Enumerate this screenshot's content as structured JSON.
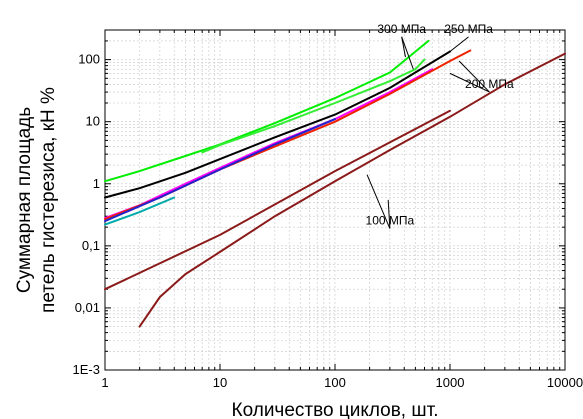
{
  "chart_data": {
    "type": "line",
    "xscale": "log",
    "yscale": "log",
    "xlim": [
      1,
      10000
    ],
    "ylim": [
      0.001,
      300
    ],
    "grid": true,
    "xlabel": "Количество циклов, шт.",
    "ylabel": [
      "Суммарная площадь",
      "петель гистерезиса, кН %"
    ],
    "x_ticks": [
      {
        "value": 1,
        "label": "1"
      },
      {
        "value": 10,
        "label": "10"
      },
      {
        "value": 100,
        "label": "100"
      },
      {
        "value": 1000,
        "label": "1000"
      },
      {
        "value": 10000,
        "label": "10000"
      }
    ],
    "y_ticks": [
      {
        "value": 0.001,
        "label": "1E-3"
      },
      {
        "value": 0.01,
        "label": "0,01"
      },
      {
        "value": 0.1,
        "label": "0,1"
      },
      {
        "value": 1,
        "label": "1"
      },
      {
        "value": 10,
        "label": "10"
      },
      {
        "value": 100,
        "label": "100"
      }
    ],
    "series": [
      {
        "color": "#00ee00",
        "points": [
          [
            1,
            1.1
          ],
          [
            2,
            1.6
          ],
          [
            5,
            2.8
          ],
          [
            10,
            4.3
          ],
          [
            30,
            9.5
          ],
          [
            100,
            24
          ],
          [
            300,
            62
          ],
          [
            650,
            200
          ]
        ]
      },
      {
        "color": "#33ee33",
        "points": [
          [
            7,
            3.2
          ],
          [
            10,
            4.2
          ],
          [
            30,
            8.5
          ],
          [
            100,
            20
          ],
          [
            300,
            45
          ],
          [
            500,
            70
          ],
          [
            600,
            100
          ]
        ]
      },
      {
        "color": "#000000",
        "points": [
          [
            1,
            0.6
          ],
          [
            2,
            0.85
          ],
          [
            5,
            1.5
          ],
          [
            10,
            2.5
          ],
          [
            30,
            5.6
          ],
          [
            100,
            13
          ],
          [
            300,
            35
          ],
          [
            1000,
            135
          ]
        ]
      },
      {
        "color": "#ff00ff",
        "points": [
          [
            1,
            0.28
          ],
          [
            2,
            0.45
          ],
          [
            5,
            1.0
          ],
          [
            10,
            1.8
          ],
          [
            30,
            4.5
          ],
          [
            100,
            11
          ],
          [
            300,
            30
          ],
          [
            700,
            70
          ]
        ]
      },
      {
        "color": "#ee2200",
        "points": [
          [
            1,
            0.27
          ],
          [
            3,
            0.6
          ],
          [
            10,
            1.7
          ],
          [
            30,
            4.0
          ],
          [
            100,
            10
          ],
          [
            300,
            28
          ],
          [
            1000,
            95
          ],
          [
            1500,
            140
          ]
        ]
      },
      {
        "color": "#2222cc",
        "points": [
          [
            1,
            0.25
          ],
          [
            3,
            0.6
          ],
          [
            10,
            1.7
          ],
          [
            30,
            4.3
          ],
          [
            100,
            11
          ]
        ]
      },
      {
        "color": "#00aaaa",
        "points": [
          [
            1,
            0.22
          ],
          [
            2,
            0.35
          ],
          [
            4,
            0.6
          ]
        ]
      },
      {
        "color": "#8b1a1a",
        "points": [
          [
            1,
            0.02
          ],
          [
            10,
            0.15
          ],
          [
            100,
            1.6
          ],
          [
            1000,
            15
          ]
        ]
      },
      {
        "color": "#8b1a1a",
        "points": [
          [
            2,
            0.005
          ],
          [
            3,
            0.015
          ],
          [
            5,
            0.035
          ],
          [
            10,
            0.08
          ],
          [
            30,
            0.3
          ],
          [
            100,
            1.1
          ],
          [
            300,
            3.5
          ],
          [
            1000,
            12
          ],
          [
            3000,
            40
          ],
          [
            10000,
            125
          ]
        ]
      }
    ],
    "annotations": [
      {
        "text": "300 МПа",
        "at": [
          380,
          270
        ],
        "pointers": [
          [
            410,
            110
          ],
          [
            480,
            70
          ]
        ]
      },
      {
        "text": "250 МПа",
        "at": [
          1450,
          270
        ],
        "pointers": [
          [
            1000,
            135
          ]
        ]
      },
      {
        "text": "200 МПа",
        "at": [
          2200,
          35
        ],
        "pointers": [
          [
            1200,
            95
          ],
          [
            1000,
            60
          ]
        ]
      },
      {
        "text": "100 МПа",
        "at": [
          300,
          0.22
        ],
        "pointers": [
          [
            190,
            1.4
          ],
          [
            290,
            0.55
          ]
        ]
      }
    ]
  }
}
